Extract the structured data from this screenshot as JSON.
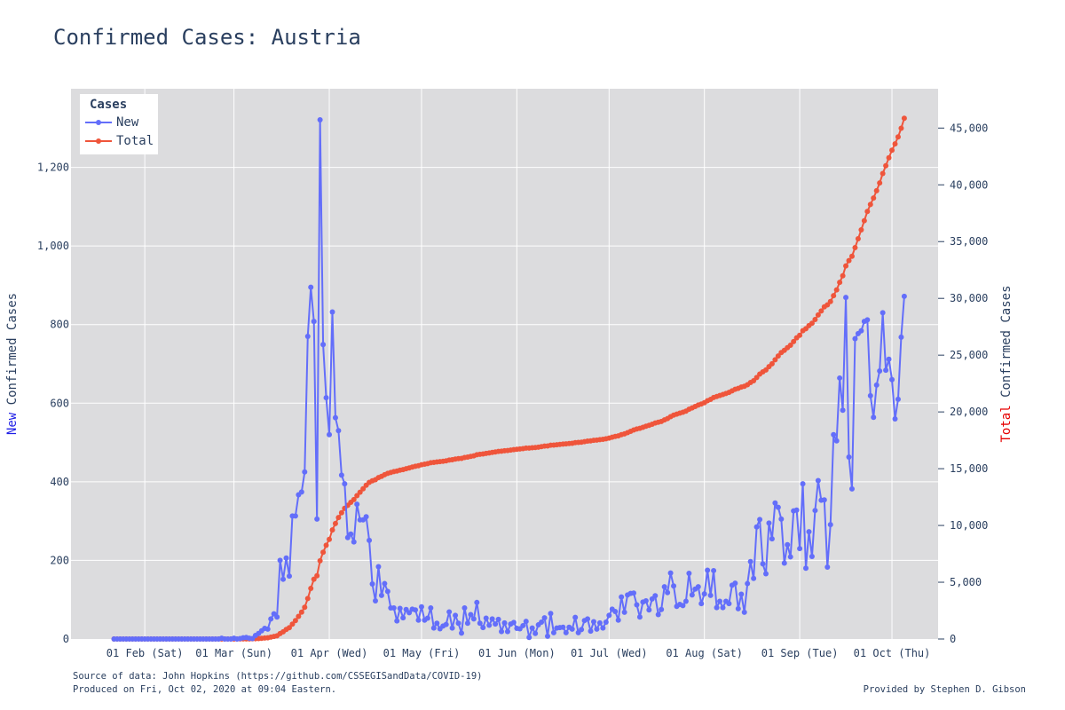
{
  "title": "Confirmed Cases: Austria",
  "footer": {
    "source": "Source of data: John Hopkins (https://github.com/CSSEGISandData/COVID-19)",
    "produced": "Produced on Fri, Oct 02, 2020 at 09:04 Eastern.",
    "credit": "Provided by Stephen D. Gibson"
  },
  "colors": {
    "new": "#636efa",
    "total": "#ef553b",
    "plot_bg": "#dcdcde",
    "grid": "#ffffff",
    "text": "#2a3f5f",
    "ylabel_new_word": "#1f1fe6",
    "ylabel_total_word": "#e60000"
  },
  "chart_data": {
    "type": "line",
    "title": "Confirmed Cases: Austria",
    "legend": {
      "title": "Cases",
      "placement": "top-left",
      "entries": [
        "New",
        "Total"
      ]
    },
    "ylabel_left": {
      "highlight": "New",
      "rest": " Confirmed Cases"
    },
    "ylabel_right": {
      "highlight": "Total",
      "rest": " Confirmed Cases"
    },
    "x_ticks": [
      {
        "date": "2020-02-01",
        "label": "01 Feb (Sat)"
      },
      {
        "date": "2020-03-01",
        "label": "01 Mar (Sun)"
      },
      {
        "date": "2020-04-01",
        "label": "01 Apr (Wed)"
      },
      {
        "date": "2020-05-01",
        "label": "01 May (Fri)"
      },
      {
        "date": "2020-06-01",
        "label": "01 Jun (Mon)"
      },
      {
        "date": "2020-07-01",
        "label": "01 Jul (Wed)"
      },
      {
        "date": "2020-08-01",
        "label": "01 Aug (Sat)"
      },
      {
        "date": "2020-09-01",
        "label": "01 Sep (Tue)"
      },
      {
        "date": "2020-10-01",
        "label": "01 Oct (Thu)"
      }
    ],
    "xlim": [
      "2020-01-08",
      "2020-10-16"
    ],
    "y_left": {
      "range": [
        0,
        1400
      ],
      "ticks": [
        0,
        200,
        400,
        600,
        800,
        1000,
        1200
      ],
      "tick_labels": [
        "0",
        "200",
        "400",
        "600",
        "800",
        "1,000",
        "1,200"
      ]
    },
    "y_right": {
      "range": [
        0,
        48462
      ],
      "ticks": [
        0,
        5000,
        10000,
        15000,
        20000,
        25000,
        30000,
        35000,
        40000,
        45000
      ],
      "tick_labels": [
        "0",
        "5,000",
        "10,000",
        "15,000",
        "20,000",
        "25,000",
        "30,000",
        "35,000",
        "40,000",
        "45,000"
      ]
    },
    "grid": true,
    "start_date": "2020-01-22",
    "series": [
      {
        "name": "New",
        "axis": "left",
        "values": [
          0,
          0,
          0,
          0,
          0,
          0,
          0,
          0,
          0,
          0,
          0,
          0,
          0,
          0,
          0,
          0,
          0,
          0,
          0,
          0,
          0,
          0,
          0,
          0,
          0,
          0,
          0,
          0,
          0,
          0,
          0,
          0,
          0,
          0,
          0,
          2,
          0,
          0,
          0,
          2,
          0,
          1,
          3,
          4,
          2,
          1,
          9,
          14,
          21,
          27,
          25,
          51,
          64,
          56,
          200,
          152,
          206,
          160,
          313,
          313,
          367,
          374,
          425,
          770,
          895,
          808,
          305,
          1321,
          749,
          614,
          520,
          832,
          563,
          530,
          417,
          395,
          258,
          267,
          247,
          343,
          303,
          303,
          311,
          251,
          140,
          97,
          184,
          111,
          141,
          121,
          79,
          79,
          46,
          78,
          54,
          75,
          67,
          76,
          74,
          48,
          82,
          48,
          53,
          79,
          28,
          40,
          26,
          33,
          37,
          69,
          28,
          60,
          40,
          15,
          79,
          40,
          62,
          51,
          93,
          40,
          29,
          53,
          35,
          51,
          38,
          50,
          19,
          41,
          19,
          38,
          42,
          27,
          26,
          34,
          45,
          4,
          28,
          14,
          36,
          43,
          54,
          7,
          65,
          16,
          28,
          29,
          30,
          16,
          30,
          25,
          55,
          16,
          24,
          47,
          51,
          20,
          44,
          25,
          41,
          28,
          43,
          60,
          76,
          70,
          48,
          107,
          68,
          112,
          116,
          117,
          87,
          56,
          94,
          97,
          74,
          102,
          110,
          62,
          75,
          133,
          118,
          168,
          135,
          83,
          88,
          85,
          96,
          167,
          112,
          127,
          133,
          90,
          115,
          175,
          111,
          174,
          80,
          96,
          80,
          96,
          90,
          137,
          142,
          77,
          114,
          68,
          141,
          197,
          154,
          285,
          304,
          191,
          166,
          295,
          255,
          346,
          335,
          305,
          193,
          240,
          209,
          326,
          328,
          230,
          395,
          180,
          273,
          210,
          327,
          403,
          353,
          354,
          183,
          291,
          520,
          504,
          664,
          582,
          869,
          463,
          382,
          764,
          777,
          784,
          808,
          812,
          619,
          564,
          646,
          682,
          830,
          684,
          712,
          660,
          560,
          610,
          768,
          872
        ]
      },
      {
        "name": "Total",
        "axis": "right",
        "values": [
          0,
          0,
          0,
          0,
          0,
          0,
          0,
          0,
          0,
          0,
          0,
          0,
          0,
          0,
          0,
          0,
          0,
          0,
          0,
          0,
          0,
          0,
          0,
          0,
          0,
          0,
          0,
          0,
          0,
          0,
          0,
          0,
          0,
          0,
          0,
          2,
          2,
          2,
          2,
          4,
          4,
          5,
          8,
          12,
          14,
          15,
          24,
          38,
          59,
          86,
          111,
          162,
          226,
          282,
          482,
          634,
          840,
          1000,
          1313,
          1626,
          1993,
          2367,
          2792,
          3562,
          4457,
          5265,
          5570,
          6891,
          7640,
          8254,
          8774,
          9606,
          10169,
          10699,
          11116,
          11511,
          11769,
          12036,
          12283,
          12626,
          12929,
          13232,
          13543,
          13794,
          13934,
          14031,
          14215,
          14326,
          14467,
          14588,
          14667,
          14746,
          14792,
          14870,
          14924,
          14999,
          15066,
          15142,
          15216,
          15264,
          15346,
          15394,
          15447,
          15526,
          15554,
          15594,
          15620,
          15653,
          15690,
          15759,
          15787,
          15847,
          15887,
          15902,
          15981,
          16021,
          16083,
          16134,
          16227,
          16267,
          16296,
          16349,
          16384,
          16435,
          16473,
          16523,
          16542,
          16583,
          16602,
          16640,
          16682,
          16709,
          16735,
          16769,
          16814,
          16818,
          16846,
          16860,
          16896,
          16939,
          16993,
          17000,
          17065,
          17081,
          17109,
          17138,
          17168,
          17184,
          17214,
          17239,
          17294,
          17310,
          17334,
          17381,
          17432,
          17452,
          17496,
          17521,
          17562,
          17590,
          17633,
          17693,
          17769,
          17839,
          17887,
          17994,
          18062,
          18174,
          18290,
          18407,
          18494,
          18550,
          18644,
          18741,
          18815,
          18917,
          19027,
          19089,
          19164,
          19297,
          19415,
          19583,
          19718,
          19801,
          19889,
          19974,
          20070,
          20237,
          20349,
          20476,
          20609,
          20699,
          20814,
          20989,
          21100,
          21274,
          21354,
          21450,
          21530,
          21626,
          21716,
          21853,
          21995,
          22072,
          22186,
          22254,
          22395,
          22592,
          22746,
          23031,
          23335,
          23526,
          23692,
          23987,
          24242,
          24588,
          24923,
          25228,
          25421,
          25661,
          25870,
          26196,
          26524,
          26754,
          27149,
          27329,
          27602,
          27812,
          28139,
          28542,
          28895,
          29249,
          29432,
          29723,
          30243,
          30747,
          31411,
          31993,
          32862,
          33325,
          33707,
          34471,
          35248,
          36032,
          36840,
          37652,
          38271,
          38835,
          39481,
          40163,
          40993,
          41677,
          42389,
          43049,
          43609,
          44219,
          44987,
          45859
        ]
      }
    ]
  }
}
